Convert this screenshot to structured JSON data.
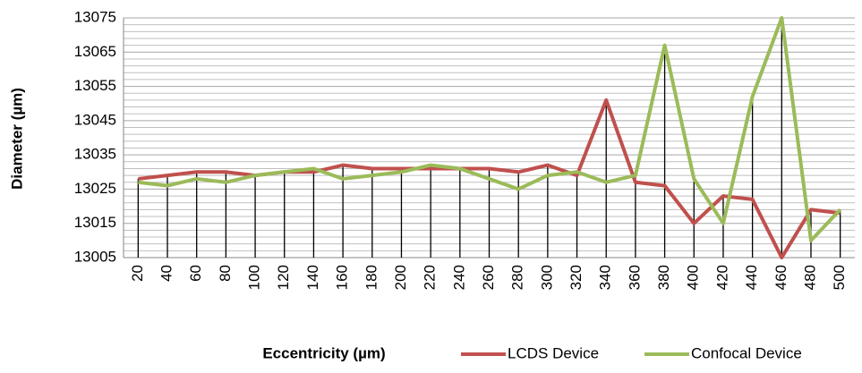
{
  "chart_data": {
    "type": "line",
    "y_label": "Diameter (µm)",
    "x_label": "Eccentricity (µm)",
    "categories": [
      "20",
      "40",
      "60",
      "80",
      "100",
      "120",
      "140",
      "160",
      "180",
      "200",
      "220",
      "240",
      "260",
      "280",
      "300",
      "320",
      "340",
      "360",
      "380",
      "400",
      "420",
      "440",
      "460",
      "480",
      "500"
    ],
    "series": [
      {
        "name": "LCDS Device",
        "color": "#c0504d",
        "values": [
          13028,
          13029,
          13030,
          13030,
          13029,
          13030,
          13030,
          13032,
          13031,
          13031,
          13031,
          13031,
          13031,
          13030,
          13032,
          13029,
          13051,
          13027,
          13026,
          13015,
          13023,
          13022,
          13005,
          13019,
          13018
        ]
      },
      {
        "name": "Confocal Device",
        "color": "#9bbb59",
        "values": [
          13027,
          13026,
          13028,
          13027,
          13029,
          13030,
          13031,
          13028,
          13029,
          13030,
          13032,
          13031,
          13028,
          13025,
          13029,
          13030,
          13027,
          13029,
          13067,
          13028,
          13015,
          13052,
          13075,
          13010,
          13019
        ]
      }
    ],
    "ylim": [
      13005,
      13075
    ],
    "yticks": [
      13005,
      13015,
      13025,
      13035,
      13045,
      13055,
      13065,
      13075
    ],
    "grid": true,
    "drop_lines": true,
    "legend": "bottom"
  }
}
